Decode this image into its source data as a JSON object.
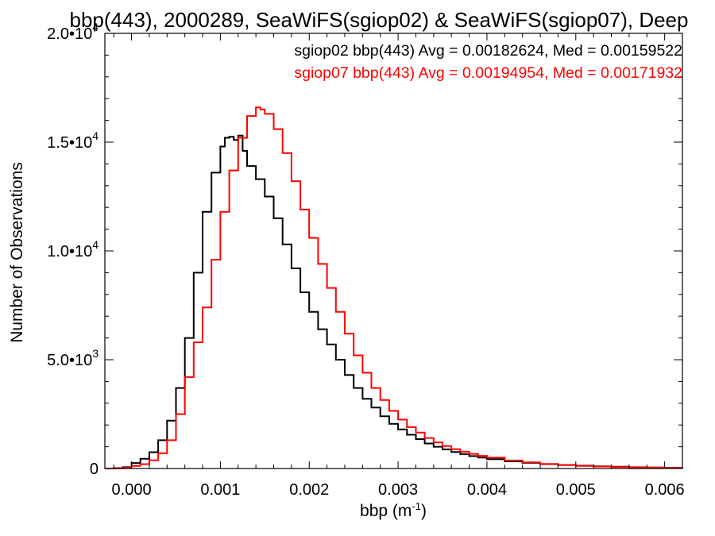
{
  "chart_data": {
    "type": "histogram",
    "title": "bbp(443), 2000289, SeaWiFS(sgiop02) & SeaWiFS(sgiop07), Deep",
    "xlabel": "bbp (m",
    "xlabel_sup": "-1",
    "xlabel_close": ")",
    "ylabel": "Number of Observations",
    "xlim": [
      -0.0003,
      0.0062
    ],
    "ylim": [
      0,
      20000
    ],
    "x_ticks": [
      {
        "value": 0.0,
        "label": "0.000"
      },
      {
        "value": 0.001,
        "label": "0.001"
      },
      {
        "value": 0.002,
        "label": "0.002"
      },
      {
        "value": 0.003,
        "label": "0.003"
      },
      {
        "value": 0.004,
        "label": "0.004"
      },
      {
        "value": 0.005,
        "label": "0.005"
      },
      {
        "value": 0.006,
        "label": "0.006"
      }
    ],
    "y_ticks": [
      {
        "value": 0,
        "mantissa": "0",
        "exponent": ""
      },
      {
        "value": 5000,
        "mantissa": "5.0•10",
        "exponent": "3"
      },
      {
        "value": 10000,
        "mantissa": "1.0•10",
        "exponent": "4"
      },
      {
        "value": 15000,
        "mantissa": "1.5•10",
        "exponent": "4"
      },
      {
        "value": 20000,
        "mantissa": "2.0•10",
        "exponent": "4"
      }
    ],
    "annotations": [
      {
        "text": "sgiop02 bbp(443) Avg = 0.00182624, Med = 0.00159522",
        "color": "#000000"
      },
      {
        "text": "sgiop07 bbp(443) Avg = 0.00194954, Med = 0.00171932",
        "color": "#ff0000"
      }
    ],
    "series": [
      {
        "name": "sgiop02",
        "color": "#000000",
        "x": [
          -0.0003,
          -0.0002,
          -0.0001,
          0.0,
          0.0001,
          0.0002,
          0.0003,
          0.0004,
          0.0005,
          0.0006,
          0.0007,
          0.0008,
          0.0009,
          0.001,
          0.00105,
          0.0011,
          0.00115,
          0.0012,
          0.00125,
          0.0013,
          0.0014,
          0.0015,
          0.0016,
          0.0017,
          0.0018,
          0.0019,
          0.002,
          0.0021,
          0.0022,
          0.0023,
          0.0024,
          0.0025,
          0.0026,
          0.0027,
          0.0028,
          0.0029,
          0.003,
          0.0031,
          0.0032,
          0.0033,
          0.0034,
          0.0035,
          0.0036,
          0.0037,
          0.0038,
          0.0039,
          0.004,
          0.0042,
          0.0044,
          0.0046,
          0.0048,
          0.005,
          0.0052,
          0.0054,
          0.0056,
          0.0058,
          0.006,
          0.0062
        ],
        "values": [
          0,
          20,
          60,
          250,
          450,
          750,
          1300,
          2200,
          3700,
          6000,
          9000,
          11800,
          13600,
          14800,
          15200,
          15250,
          15100,
          15300,
          14600,
          13900,
          13300,
          12500,
          11500,
          10300,
          9200,
          8100,
          7200,
          6400,
          5700,
          5000,
          4300,
          3700,
          3200,
          2800,
          2400,
          2050,
          1800,
          1550,
          1350,
          1150,
          1000,
          880,
          760,
          660,
          570,
          500,
          430,
          330,
          260,
          200,
          160,
          130,
          100,
          80,
          60,
          45,
          35,
          25
        ]
      },
      {
        "name": "sgiop07",
        "color": "#ff0000",
        "x": [
          -0.0003,
          -0.0002,
          -0.0001,
          0.0,
          0.0001,
          0.0002,
          0.0003,
          0.0004,
          0.0005,
          0.0006,
          0.0007,
          0.0008,
          0.0009,
          0.001,
          0.0011,
          0.0012,
          0.0013,
          0.0014,
          0.00145,
          0.0015,
          0.0016,
          0.0017,
          0.0018,
          0.0019,
          0.002,
          0.0021,
          0.0022,
          0.0023,
          0.0024,
          0.0025,
          0.0026,
          0.0027,
          0.0028,
          0.0029,
          0.003,
          0.0031,
          0.0032,
          0.0033,
          0.0034,
          0.0035,
          0.0036,
          0.0037,
          0.0038,
          0.0039,
          0.004,
          0.0042,
          0.0044,
          0.0046,
          0.0048,
          0.005,
          0.0052,
          0.0054,
          0.0056,
          0.0058,
          0.006,
          0.0062
        ],
        "values": [
          0,
          10,
          30,
          120,
          200,
          380,
          700,
          1300,
          2500,
          4200,
          5800,
          7400,
          9600,
          11800,
          13700,
          15200,
          16200,
          16600,
          16500,
          16300,
          15600,
          14500,
          13200,
          11900,
          10600,
          9400,
          8300,
          7200,
          6200,
          5200,
          4400,
          3700,
          3150,
          2650,
          2250,
          1900,
          1650,
          1400,
          1200,
          1030,
          890,
          770,
          670,
          580,
          500,
          370,
          280,
          210,
          160,
          120,
          90,
          70,
          55,
          40,
          30,
          20
        ]
      }
    ]
  }
}
